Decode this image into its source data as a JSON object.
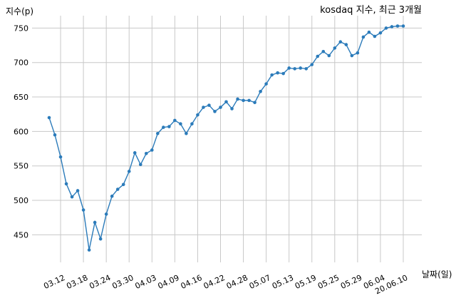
{
  "chart_data": {
    "type": "line",
    "title": "kosdaq 지수, 최근 3개월",
    "xlabel": "날짜(일)",
    "ylabel": "지수(p)",
    "ylim": [
      410,
      768
    ],
    "yticks": [
      450,
      500,
      550,
      600,
      650,
      700,
      750
    ],
    "grid": true,
    "line_color": "#2b7bba",
    "xtick_labels": [
      "03.12",
      "03.18",
      "03.24",
      "03.30",
      "04.03",
      "04.09",
      "04.16",
      "04.22",
      "04.28",
      "05.07",
      "05.13",
      "05.19",
      "05.25",
      "05.29",
      "06.04",
      "20.06.10"
    ],
    "xtick_index": [
      2,
      6,
      10,
      14,
      18,
      22,
      26,
      30,
      34,
      38,
      42,
      46,
      50,
      54,
      58,
      62
    ],
    "series": [
      {
        "values": [
          620,
          595,
          563,
          524,
          505,
          514,
          486,
          428,
          468,
          444,
          480,
          506,
          516,
          523,
          542,
          569,
          552,
          568,
          573,
          597,
          606,
          607,
          616,
          611,
          597,
          611,
          624,
          635,
          638,
          629,
          635,
          643,
          633,
          647,
          645,
          645,
          642,
          658,
          669,
          682,
          685,
          684,
          692,
          691,
          692,
          691,
          697,
          709,
          716,
          710,
          721,
          730,
          726,
          710,
          714,
          737,
          744,
          738,
          743,
          750,
          752,
          753,
          753
        ]
      }
    ]
  }
}
